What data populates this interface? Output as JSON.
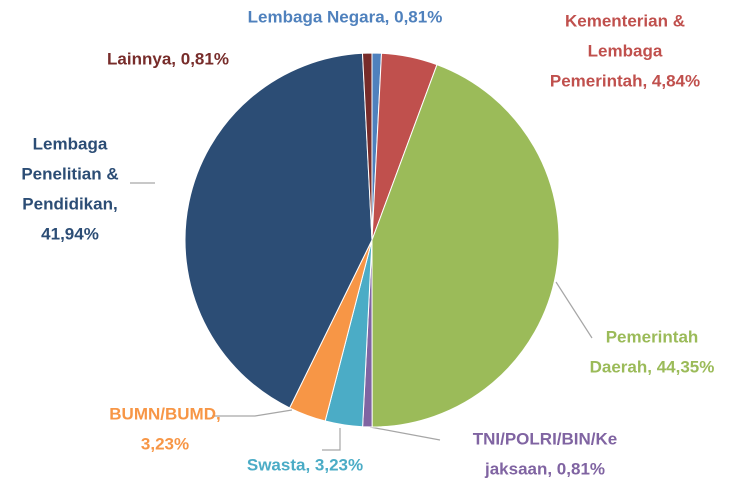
{
  "chart_data": {
    "type": "pie",
    "values": [
      0.81,
      4.84,
      44.35,
      0.81,
      3.23,
      3.23,
      41.94,
      0.81
    ],
    "value_labels": [
      [
        "Lembaga Negara, 0,81%"
      ],
      [
        "Kementerian &",
        "Lembaga",
        "Pemerintah, 4,84%"
      ],
      [
        "Pemerintah",
        "Daerah, 44,35%"
      ],
      [
        "TNI/POLRI/BIN/Ke",
        "jaksaan, 0,81%"
      ],
      [
        "Swasta, 3,23%"
      ],
      [
        "BUMN/BUMD,",
        "3,23%"
      ],
      [
        "Lembaga",
        "Penelitian &",
        "Pendidikan,",
        "41,94%"
      ],
      [
        "Lainnya, 0,81%"
      ]
    ],
    "colors": [
      "#4f81bd",
      "#c0504d",
      "#9bbb59",
      "#8064a2",
      "#4bacc6",
      "#f79646",
      "#2c4d75",
      "#772c2a"
    ]
  }
}
